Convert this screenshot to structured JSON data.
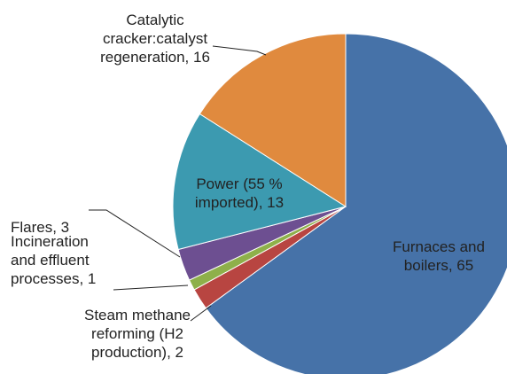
{
  "chart_data": {
    "type": "pie",
    "categories": [
      "Furnaces and boilers, 65",
      "Steam methane reforming (H2 production), 2",
      "Incineration and effluent processes, 1",
      "Flares, 3",
      "Power (55 % imported), 13",
      "Catalytic cracker:catalyst regeneration, 16"
    ],
    "values": [
      65,
      2,
      1,
      3,
      13,
      16
    ],
    "colors": [
      "#4672a8",
      "#b84541",
      "#8eb04a",
      "#6d4f91",
      "#3c9ab0",
      "#e08a3e"
    ],
    "start_angle": 0,
    "direction": "clockwise"
  }
}
